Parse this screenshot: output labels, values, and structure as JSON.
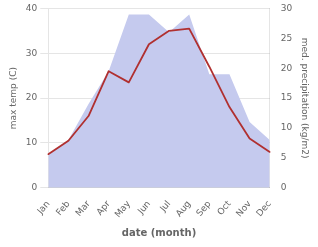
{
  "chart_data": {
    "type": "line",
    "categories": [
      "Jan",
      "Feb",
      "Mar",
      "Apr",
      "May",
      "Jun",
      "Jul",
      "Aug",
      "Sep",
      "Oct",
      "Nov",
      "Dec"
    ],
    "series": [
      {
        "type": "area",
        "color": "#c5caee",
        "axis": "y2",
        "values": [
          5.5,
          8.0,
          14.0,
          19.5,
          29.0,
          29.0,
          26.0,
          29.0,
          19.0,
          19.0,
          11.0,
          8.0
        ]
      },
      {
        "type": "line",
        "color": "#b03030",
        "values": [
          7.5,
          10.5,
          16.0,
          26.0,
          23.5,
          32.0,
          35.0,
          35.5,
          27.0,
          18.0,
          11.0,
          8.0
        ]
      }
    ],
    "x_label": "date (month)",
    "y_label": "max temp (C)",
    "y2_label": "med. precipitation (kg/m2)",
    "ylim": [
      0,
      40
    ],
    "yticks": [
      0,
      10,
      20,
      30,
      40
    ],
    "y2lim": [
      0,
      30
    ],
    "y2ticks": [
      0,
      5,
      10,
      15,
      20,
      25,
      30
    ],
    "grid": true
  }
}
